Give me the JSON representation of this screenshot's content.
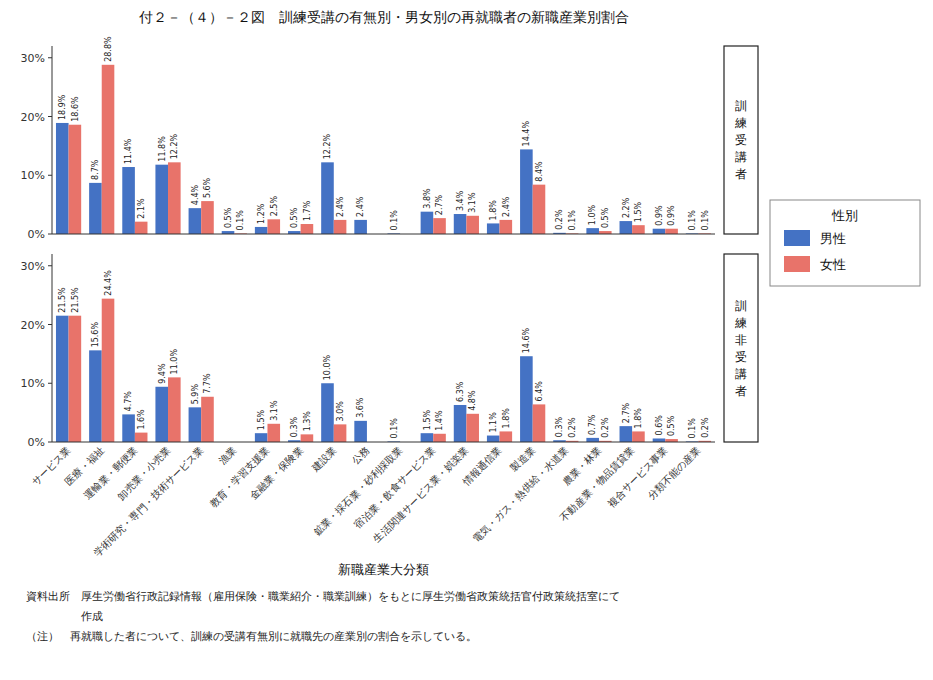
{
  "chart_data": [
    {
      "type": "bar",
      "title": "付２－（４）－２図　訓練受講の有無別・男女別の再就職者の新職産業別割合",
      "annotations": [
        "訓\n練\n受\n講\n者"
      ],
      "legend": "right",
      "legend_title": "性別",
      "categories": [
        "サービス業",
        "医療・福祉",
        "運輸業・郵便業",
        "卸売業・小売業",
        "学術研究・専門・技術サービス業",
        "漁業",
        "教育・学習支援業",
        "金融業・保険業",
        "建設業",
        "公務",
        "鉱業・採石業・砂利採取業",
        "宿泊業・飲食サービス業",
        "生活関連サービス業・娯楽業",
        "情報通信業",
        "製造業",
        "電気・ガス・熱供給・水道業",
        "農業・林業",
        "不動産業・物品賃貸業",
        "複合サービス事業",
        "分類不能の産業"
      ],
      "series": [
        {
          "name": "男性",
          "color": "#4472C4",
          "values": [
            18.9,
            8.7,
            11.4,
            11.8,
            4.4,
            0.5,
            1.2,
            0.5,
            12.2,
            2.4,
            0.1,
            3.8,
            3.4,
            1.8,
            14.4,
            0.2,
            1.0,
            2.2,
            0.9,
            0.1
          ],
          "value_labels": [
            "18.9%",
            "8.7%",
            "11.4%",
            "11.8%",
            "4.4%",
            "0.5%",
            "1.2%",
            "0.5%",
            "12.2%",
            "2.4%",
            "0.1%",
            "3.8%",
            "3.4%",
            "1.8%",
            "14.4%",
            "0.2%",
            "1.0%",
            "2.2%",
            "0.9%",
            "0.1%"
          ]
        },
        {
          "name": "女性",
          "color": "#E8736A",
          "values": [
            18.6,
            28.8,
            2.1,
            12.2,
            5.6,
            0.1,
            2.5,
            1.7,
            2.4,
            0.0,
            0.0,
            2.7,
            3.1,
            2.4,
            8.4,
            0.1,
            0.5,
            1.5,
            0.9,
            0.1
          ],
          "value_labels": [
            "18.6%",
            "28.8%",
            "2.1%",
            "12.2%",
            "5.6%",
            "0.1%",
            "2.5%",
            "1.7%",
            "2.4%",
            null,
            null,
            "2.7%",
            "3.1%",
            "2.4%",
            "8.4%",
            "0.1%",
            "0.5%",
            "1.5%",
            "0.9%",
            "0.1%"
          ]
        }
      ],
      "ylim": [
        0,
        32
      ],
      "yticks": [
        {
          "value": 0,
          "label": "0%"
        },
        {
          "value": 10,
          "label": "10%"
        },
        {
          "value": 20,
          "label": "20%"
        },
        {
          "value": 30,
          "label": "30%"
        }
      ],
      "grid": false,
      "data_labels": true,
      "tick_labels": "y"
    },
    {
      "type": "bar",
      "xlabel": "新職産業大分類",
      "annotations": [
        "訓\n練\n非\n受\n講\n者",
        "資料出所　厚生労働省行政記録情報（雇用保険・職業紹介・職業訓練）をもとに厚生労働省政策統括官付政策統括室にて",
        "　　　　　作成",
        "（注）　再就職した者について、訓練の受講有無別に就職先の産業別の割合を示している。"
      ],
      "categories": [
        "サービス業",
        "医療・福祉",
        "運輸業・郵便業",
        "卸売業・小売業",
        "学術研究・専門・技術サービス業",
        "漁業",
        "教育・学習支援業",
        "金融業・保険業",
        "建設業",
        "公務",
        "鉱業・採石業・砂利採取業",
        "宿泊業・飲食サービス業",
        "生活関連サービス業・娯楽業",
        "情報通信業",
        "製造業",
        "電気・ガス・熱供給・水道業",
        "農業・林業",
        "不動産業・物品賃貸業",
        "複合サービス事業",
        "分類不能の産業"
      ],
      "series": [
        {
          "name": "男性",
          "color": "#4472C4",
          "values": [
            21.5,
            15.6,
            4.7,
            9.4,
            5.9,
            0.0,
            1.5,
            0.3,
            10.0,
            3.6,
            0.1,
            1.5,
            6.3,
            1.1,
            14.6,
            0.3,
            0.7,
            2.7,
            0.6,
            0.1
          ],
          "value_labels": [
            "21.5%",
            "15.6%",
            "4.7%",
            "9.4%",
            "5.9%",
            null,
            "1.5%",
            "0.3%",
            "10.0%",
            "3.6%",
            "0.1%",
            "1.5%",
            "6.3%",
            "1.1%",
            "14.6%",
            "0.3%",
            "0.7%",
            "2.7%",
            "0.6%",
            "0.1%"
          ]
        },
        {
          "name": "女性",
          "color": "#E8736A",
          "values": [
            21.5,
            24.4,
            1.6,
            11.0,
            7.7,
            0.0,
            3.1,
            1.3,
            3.0,
            0.0,
            0.0,
            1.4,
            4.8,
            1.8,
            6.4,
            0.2,
            0.2,
            1.8,
            0.5,
            0.2
          ],
          "value_labels": [
            "21.5%",
            "24.4%",
            "1.6%",
            "11.0%",
            "7.7%",
            null,
            "3.1%",
            "1.3%",
            "3.0%",
            null,
            null,
            "1.4%",
            "4.8%",
            "1.8%",
            "6.4%",
            "0.2%",
            "0.2%",
            "1.8%",
            "0.5%",
            "0.2%"
          ]
        }
      ],
      "ylim": [
        0,
        32
      ],
      "yticks": [
        {
          "value": 0,
          "label": "0%"
        },
        {
          "value": 10,
          "label": "10%"
        },
        {
          "value": 20,
          "label": "20%"
        },
        {
          "value": 30,
          "label": "30%"
        }
      ],
      "grid": false,
      "data_labels": true
    }
  ]
}
